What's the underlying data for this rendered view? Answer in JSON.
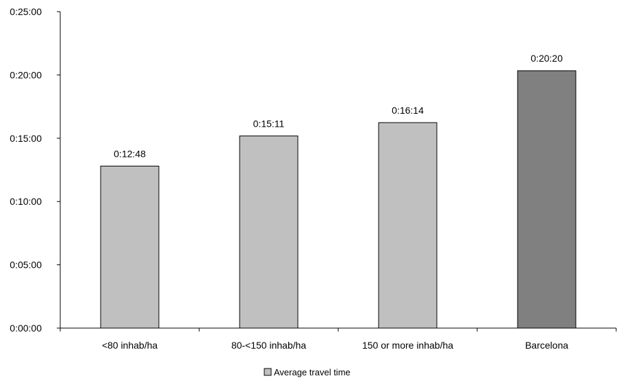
{
  "chart_data": {
    "type": "bar",
    "categories": [
      "<80 inhab/ha",
      "80-<150 inhab/ha",
      "150 or more inhab/ha",
      "Barcelona"
    ],
    "series": [
      {
        "name": "Average travel time",
        "values_seconds": [
          768,
          911,
          974,
          1220
        ],
        "data_labels": [
          "0:12:48",
          "0:15:11",
          "0:16:14",
          "0:20:20"
        ]
      }
    ],
    "ylim_seconds": [
      0,
      1500
    ],
    "ytick_labels": [
      "0:00:00",
      "0:05:00",
      "0:10:00",
      "0:15:00",
      "0:20:00",
      "0:25:00"
    ],
    "ytick_values_seconds": [
      0,
      300,
      600,
      900,
      1200,
      1500
    ],
    "bar_colors": [
      "#c0c0c0",
      "#c0c0c0",
      "#c0c0c0",
      "#808080"
    ],
    "legend_color": "#c0c0c0",
    "legend_position": "bottom",
    "grid": false
  }
}
